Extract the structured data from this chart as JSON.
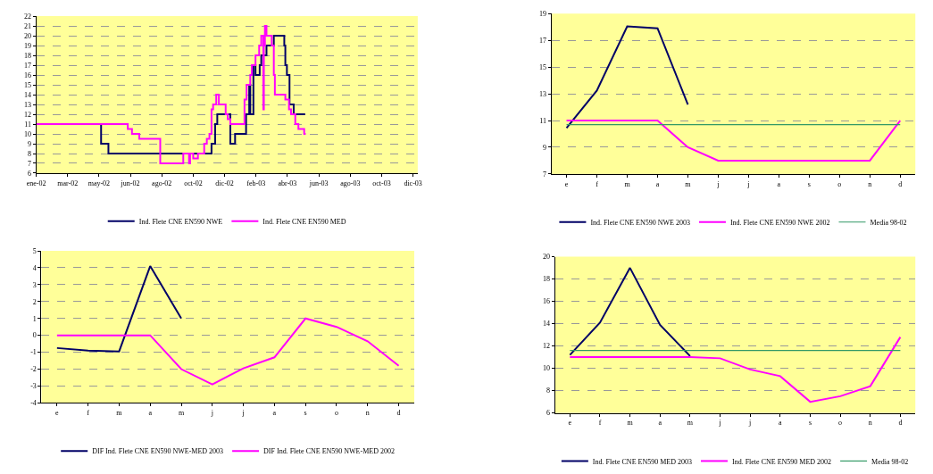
{
  "chart_data": [
    {
      "type": "step",
      "xlim": [
        "2002-01-01",
        "2003-12-31"
      ],
      "xticks": [
        {
          "value": "2002-01-01",
          "label": "ene-02"
        },
        {
          "value": "2002-03-02",
          "label": "mar-02"
        },
        {
          "value": "2002-05-01",
          "label": "may-02"
        },
        {
          "value": "2002-06-30",
          "label": "jun-02"
        },
        {
          "value": "2002-08-29",
          "label": "ago-02"
        },
        {
          "value": "2002-10-28",
          "label": "oct-02"
        },
        {
          "value": "2002-12-27",
          "label": "dic-02"
        },
        {
          "value": "2003-02-25",
          "label": "feb-03"
        },
        {
          "value": "2003-04-26",
          "label": "abr-03"
        },
        {
          "value": "2003-06-25",
          "label": "jun-03"
        },
        {
          "value": "2003-08-24",
          "label": "ago-03"
        },
        {
          "value": "2003-10-23",
          "label": "oct-03"
        },
        {
          "value": "2003-12-22",
          "label": "dic-03"
        }
      ],
      "ylim": [
        6,
        22
      ],
      "yticks": [
        6,
        7,
        8,
        9,
        10,
        11,
        12,
        13,
        14,
        15,
        16,
        17,
        18,
        19,
        20,
        21,
        22
      ],
      "grid": "y",
      "legend": "bottom",
      "series": [
        {
          "name": "Ind. Flete CNE EN590 NWE",
          "color": "#000066",
          "x": [
            "2002-01-01",
            "2002-05-05",
            "2002-05-19",
            "2002-12-02",
            "2002-12-09",
            "2002-12-13",
            "2003-01-07",
            "2003-01-16",
            "2003-02-06",
            "2003-02-12",
            "2003-02-14",
            "2003-02-20",
            "2003-02-24",
            "2003-03-04",
            "2003-03-07",
            "2003-03-17",
            "2003-03-31",
            "2003-04-20",
            "2003-04-22",
            "2003-04-25",
            "2003-04-30",
            "2003-05-08",
            "2003-05-30"
          ],
          "values": [
            11,
            9,
            8,
            9,
            11,
            12,
            9,
            10,
            12,
            15,
            12,
            17,
            16,
            17,
            18,
            19,
            20,
            19,
            17,
            16,
            13,
            12,
            12
          ]
        },
        {
          "name": "Ind. Flete CNE EN590 MED",
          "color": "#ff00ff",
          "x": [
            "2002-01-01",
            "2002-06-25",
            "2002-07-03",
            "2002-07-17",
            "2002-08-26",
            "2002-10-09",
            "2002-10-20",
            "2002-10-22",
            "2002-10-28",
            "2002-11-06",
            "2002-11-18",
            "2002-11-23",
            "2002-11-28",
            "2002-12-02",
            "2002-12-05",
            "2002-12-11",
            "2002-12-16",
            "2002-12-29",
            "2003-01-02",
            "2003-01-07",
            "2003-02-03",
            "2003-02-07",
            "2003-02-14",
            "2003-02-17",
            "2003-02-24",
            "2003-03-03",
            "2003-03-07",
            "2003-03-11",
            "2003-03-12",
            "2003-03-14",
            "2003-03-17",
            "2003-03-27",
            "2003-03-31",
            "2003-04-02",
            "2003-04-06",
            "2003-04-22",
            "2003-04-29",
            "2003-05-03",
            "2003-05-11",
            "2003-05-17",
            "2003-05-28",
            "2003-05-31"
          ],
          "values": [
            11,
            10.5,
            10,
            9.5,
            7,
            8,
            7,
            8,
            7.5,
            8,
            9,
            9.5,
            10,
            12.5,
            13,
            14,
            13,
            12,
            11.5,
            11,
            13.5,
            15,
            16,
            17,
            18,
            19,
            20,
            12.5,
            19,
            21,
            20,
            19,
            16,
            14,
            14,
            13.5,
            12.5,
            12,
            11,
            10.5,
            10,
            10
          ]
        }
      ]
    },
    {
      "type": "line",
      "categories": [
        "e",
        "f",
        "m",
        "a",
        "m",
        "j",
        "j",
        "a",
        "s",
        "o",
        "n",
        "d"
      ],
      "ylim": [
        7,
        19
      ],
      "yticks": [
        7,
        9,
        11,
        13,
        15,
        17,
        19
      ],
      "grid": "y",
      "legend": "bottom",
      "series": [
        {
          "name": "Ind. Flete CNE EN590 NWE 2003",
          "color": "#000066",
          "values": [
            10.45,
            13.25,
            18.05,
            17.9,
            12.2,
            null,
            null,
            null,
            null,
            null,
            null,
            null
          ]
        },
        {
          "name": "Ind. Flete CNE EN590 NWE 2002",
          "color": "#ff00ff",
          "values": [
            11,
            11,
            11,
            11,
            9,
            8,
            8,
            8,
            8,
            8,
            8,
            11
          ]
        },
        {
          "name": "Media 98-02",
          "color": "#339966",
          "values": [
            10.7,
            10.7,
            10.7,
            10.7,
            10.7,
            10.7,
            10.7,
            10.7,
            10.7,
            10.7,
            10.7,
            10.7
          ]
        }
      ]
    },
    {
      "type": "line",
      "categories": [
        "e",
        "f",
        "m",
        "a",
        "m",
        "j",
        "j",
        "a",
        "s",
        "o",
        "n",
        "d"
      ],
      "ylim": [
        -4,
        5
      ],
      "yticks": [
        -4,
        -3,
        -2,
        -1,
        0,
        1,
        2,
        3,
        4,
        5
      ],
      "grid": "y",
      "legend": "bottom",
      "series": [
        {
          "name": "DIF Ind. Flete CNE EN590 NWE-MED 2003",
          "color": "#000066",
          "values": [
            -0.75,
            -0.9,
            -0.95,
            4.1,
            1.0,
            null,
            null,
            null,
            null,
            null,
            null,
            null
          ]
        },
        {
          "name": "DIF Ind. Flete CNE EN590 NWE-MED 2002",
          "color": "#ff00ff",
          "values": [
            0,
            0,
            0,
            0,
            -2,
            -2.9,
            -1.95,
            -1.3,
            1.0,
            0.5,
            -0.35,
            -1.8
          ]
        }
      ]
    },
    {
      "type": "line",
      "categories": [
        "e",
        "f",
        "m",
        "a",
        "m",
        "j",
        "j",
        "a",
        "s",
        "o",
        "n",
        "d"
      ],
      "ylim": [
        6,
        20
      ],
      "yticks": [
        6,
        8,
        10,
        12,
        14,
        16,
        18,
        20
      ],
      "grid": "y",
      "legend": "bottom",
      "series": [
        {
          "name": "Ind. Flete CNE EN590 MED 2003",
          "color": "#000066",
          "values": [
            11.2,
            14.1,
            19.0,
            13.9,
            11.1,
            null,
            null,
            null,
            null,
            null,
            null,
            null
          ]
        },
        {
          "name": "Ind. Flete CNE EN590 MED 2002",
          "color": "#ff00ff",
          "values": [
            11.0,
            11.0,
            11.0,
            11.0,
            11.0,
            10.9,
            9.9,
            9.3,
            7.0,
            7.5,
            8.4,
            12.8
          ]
        },
        {
          "name": "Media 98-02",
          "color": "#339966",
          "values": [
            11.6,
            11.6,
            11.6,
            11.6,
            11.6,
            11.6,
            11.6,
            11.6,
            11.6,
            11.6,
            11.6,
            11.6
          ]
        }
      ]
    }
  ]
}
